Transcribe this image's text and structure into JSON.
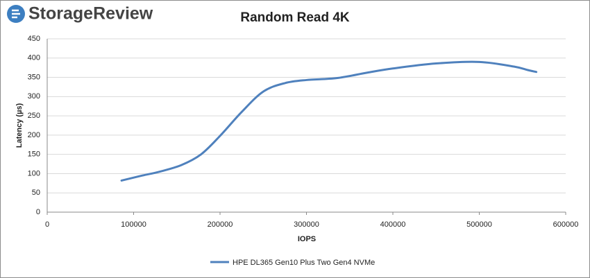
{
  "brand": "StorageReview",
  "chart_data": {
    "type": "line",
    "title": "Random Read 4K",
    "x_label": "IOPS",
    "y_label": "Latency (µs)",
    "xlim": [
      0,
      600000
    ],
    "xticks": [
      0,
      100000,
      200000,
      300000,
      400000,
      500000,
      600000
    ],
    "ylim": [
      0,
      450
    ],
    "yticks": [
      0,
      50,
      100,
      150,
      200,
      250,
      300,
      350,
      400,
      450
    ],
    "grid": true,
    "legend": "bottom",
    "series": [
      {
        "name": "HPE DL365 Gen10 Plus Two Gen4 NVMe",
        "color": "#4f81bd",
        "x": [
          86000,
          110000,
          130000,
          155000,
          178000,
          200000,
          225000,
          250000,
          275000,
          300000,
          335000,
          370000,
          400000,
          450000,
          500000,
          540000,
          556000,
          566000
        ],
        "values": [
          82,
          95,
          105,
          122,
          150,
          198,
          260,
          313,
          335,
          343,
          348,
          362,
          373,
          386,
          390,
          378,
          369,
          364
        ]
      }
    ]
  }
}
